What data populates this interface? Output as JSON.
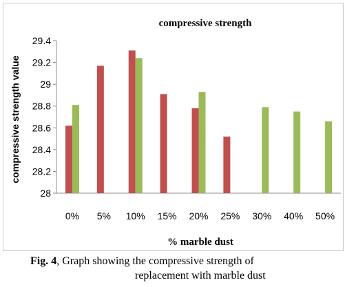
{
  "chart_data": {
    "type": "bar",
    "title": "compressive strength",
    "xlabel": "% marble dust",
    "ylabel": "compressive strength value",
    "categories": [
      "0%",
      "5%",
      "10%",
      "15%",
      "20%",
      "25%",
      "30%",
      "40%",
      "50%"
    ],
    "ylim": [
      28,
      29.4
    ],
    "yticks": [
      "28",
      "28.2",
      "28.4",
      "28.6",
      "28.8",
      "29",
      "29.2",
      "29.4"
    ],
    "grid": false,
    "legend": "none",
    "series": [
      {
        "color": "#c0504d",
        "values": [
          28.62,
          29.17,
          29.31,
          28.91,
          28.78,
          28.52,
          null,
          null,
          null
        ]
      },
      {
        "color": "#9bbb59",
        "values": [
          28.81,
          null,
          29.24,
          null,
          28.93,
          null,
          28.79,
          28.75,
          28.66
        ]
      }
    ]
  },
  "caption": {
    "fig_no": "Fig. 4",
    "line1_rest": ", Graph showing the  compressive strength of",
    "line2": "replacement with marble dust"
  }
}
